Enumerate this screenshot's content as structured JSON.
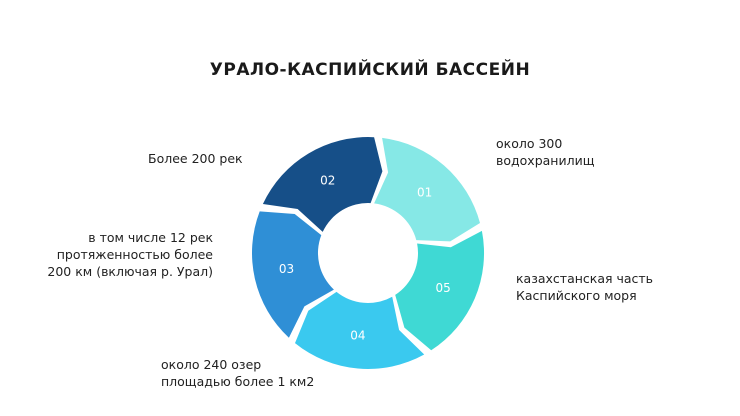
{
  "title": "УРАЛО-КАСПИЙСКИЙ БАССЕЙН",
  "segments": [
    {
      "number": "01",
      "color": "#86e8e6",
      "label": [
        "Более 200 рек"
      ]
    },
    {
      "number": "05",
      "color": "#3fd9d4",
      "label": [
        "около 300",
        "водохранилищ"
      ]
    },
    {
      "number": "04",
      "color": "#3ac9ef",
      "label": [
        "казахстанская часть",
        "Каспийского моря"
      ]
    },
    {
      "number": "03",
      "color": "#2f8fd6",
      "label": [
        "около 240 озер",
        "площадью более 1 км2"
      ]
    },
    {
      "number": "02",
      "color": "#164f88",
      "label": [
        "в том числе 12 рек",
        "протяженностью более",
        "200 км (включая р. Урал)"
      ]
    }
  ]
}
